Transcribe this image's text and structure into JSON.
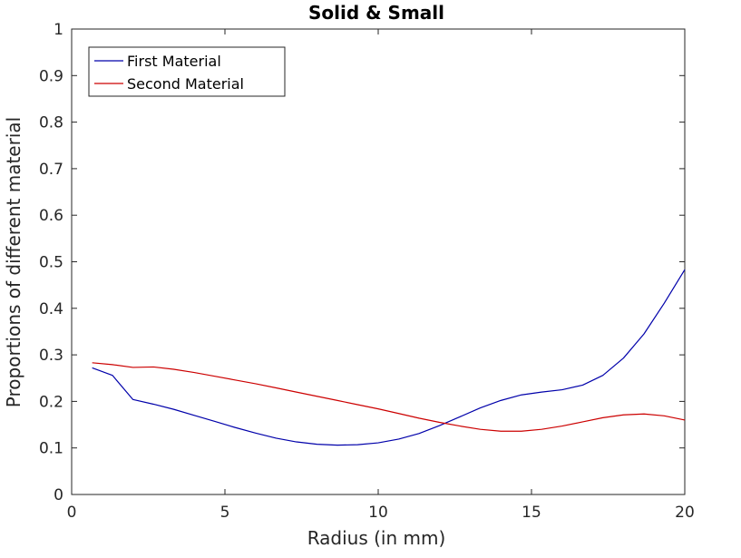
{
  "chart_data": {
    "type": "line",
    "title": "Solid & Small",
    "xlabel": "Radius (in mm)",
    "ylabel": "Proportions of different material",
    "xlim": [
      0,
      20
    ],
    "ylim": [
      0,
      1
    ],
    "xticks": [
      0,
      5,
      10,
      15,
      20
    ],
    "yticks": [
      0,
      0.1,
      0.2,
      0.3,
      0.4,
      0.5,
      0.6,
      0.7,
      0.8,
      0.9,
      1
    ],
    "grid": false,
    "legend_position": "top-left",
    "series": [
      {
        "name": "First Material",
        "color": "#0000aa",
        "x": [
          0.67,
          1.33,
          2.0,
          2.67,
          3.33,
          4.0,
          4.67,
          5.33,
          6.0,
          6.67,
          7.33,
          8.0,
          8.67,
          9.33,
          10.0,
          10.67,
          11.33,
          12.0,
          12.67,
          13.33,
          14.0,
          14.67,
          15.33,
          16.0,
          16.67,
          17.33,
          18.0,
          18.67,
          19.33,
          20.0
        ],
        "values": [
          0.272,
          0.256,
          0.204,
          0.194,
          0.183,
          0.17,
          0.157,
          0.144,
          0.132,
          0.121,
          0.113,
          0.108,
          0.106,
          0.107,
          0.111,
          0.119,
          0.131,
          0.148,
          0.167,
          0.186,
          0.202,
          0.214,
          0.22,
          0.225,
          0.235,
          0.256,
          0.293,
          0.345,
          0.411,
          0.483
        ]
      },
      {
        "name": "Second Material",
        "color": "#cc0000",
        "x": [
          0.67,
          1.33,
          2.0,
          2.67,
          3.33,
          4.0,
          4.67,
          5.33,
          6.0,
          6.67,
          7.33,
          8.0,
          8.67,
          9.33,
          10.0,
          10.67,
          11.33,
          12.0,
          12.67,
          13.33,
          14.0,
          14.67,
          15.33,
          16.0,
          16.67,
          17.33,
          18.0,
          18.67,
          19.33,
          20.0
        ],
        "values": [
          0.283,
          0.279,
          0.273,
          0.274,
          0.269,
          0.262,
          0.254,
          0.246,
          0.238,
          0.229,
          0.22,
          0.211,
          0.202,
          0.193,
          0.184,
          0.174,
          0.164,
          0.155,
          0.147,
          0.14,
          0.136,
          0.136,
          0.14,
          0.147,
          0.156,
          0.165,
          0.171,
          0.173,
          0.169,
          0.16
        ]
      }
    ]
  }
}
